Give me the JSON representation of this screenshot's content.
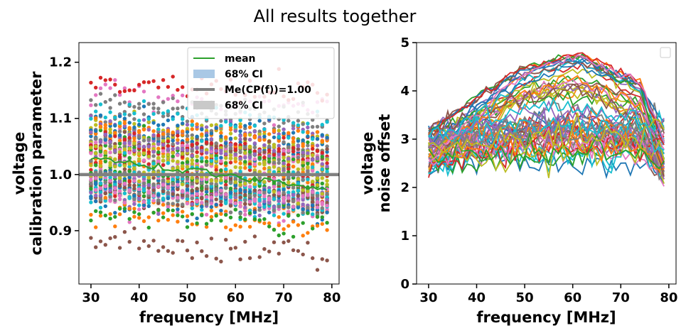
{
  "suptitle": "All results together",
  "colors": [
    "#1f77b4",
    "#ff7f0e",
    "#2ca02c",
    "#d62728",
    "#9467bd",
    "#8c564b",
    "#e377c2",
    "#7f7f7f",
    "#bcbd22",
    "#17becf"
  ],
  "chart_data": [
    {
      "type": "scatter",
      "xlabel": "frequency [MHz]",
      "ylabel_lines": [
        "voltage",
        "calibration parameter"
      ],
      "xlim": [
        27.5,
        81.5
      ],
      "ylim": [
        0.805,
        1.235
      ],
      "xticks": [
        30,
        40,
        50,
        60,
        70,
        80
      ],
      "yticks": [
        0.9,
        1.0,
        1.1,
        1.2
      ],
      "ytick_labels": [
        "0.9",
        "1.0",
        "1.1",
        "1.2"
      ],
      "x_start": 30,
      "x_end": 79,
      "x_step": 1,
      "n_series": 60,
      "spread": [
        0.09,
        0.07
      ],
      "trend": [
        1.01,
        0.985
      ],
      "mean_line": {
        "name": "mean",
        "color": "#2ca02c",
        "start": 1.03,
        "end": 0.975
      },
      "reference_line": {
        "name": "Me(CP(f))=1.00",
        "value": 1.0,
        "color": "#808080"
      },
      "legend": {
        "location": "upper right",
        "entries": [
          {
            "label": "mean",
            "kind": "line",
            "color": "#2ca02c"
          },
          {
            "label": "68% CI",
            "kind": "patch",
            "color": "#a9c8e5"
          },
          {
            "label": "Me(CP(f))=1.00",
            "kind": "thickline",
            "color": "#808080"
          },
          {
            "label": "68% CI",
            "kind": "patch",
            "color": "#c9c9c9"
          }
        ]
      }
    },
    {
      "type": "line",
      "xlabel": "frequency [MHz]",
      "ylabel_lines": [
        "voltage",
        "noise offset"
      ],
      "xlim": [
        27.5,
        81.5
      ],
      "ylim": [
        0,
        5
      ],
      "xticks": [
        30,
        40,
        50,
        60,
        70,
        80
      ],
      "yticks": [
        0,
        1,
        2,
        3,
        4,
        5
      ],
      "ytick_labels": [
        "0",
        "1",
        "2",
        "3",
        "4",
        "5"
      ],
      "x_start": 30,
      "x_end": 79,
      "x_step": 1,
      "n_series": 60,
      "edge_value_range": [
        2.3,
        3.2
      ],
      "peak_value_range": [
        2.4,
        4.75
      ],
      "end_value_range": [
        2.1,
        3.45
      ],
      "legend": {
        "location": "upper right",
        "entries": []
      }
    }
  ]
}
